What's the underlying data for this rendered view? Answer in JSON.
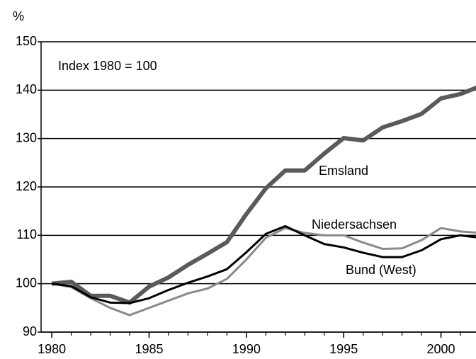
{
  "chart_data": {
    "type": "line",
    "y_label": "%",
    "annotation": "Index 1980 = 100",
    "x": [
      1980,
      1981,
      1982,
      1983,
      1984,
      1985,
      1986,
      1987,
      1988,
      1989,
      1990,
      1991,
      1992,
      1993,
      1994,
      1995,
      1996,
      1997,
      1998,
      1999,
      2000,
      2001,
      2002
    ],
    "series": [
      {
        "name": "Emsland",
        "color": "#5a5a5a",
        "values": [
          100,
          100.4,
          97.5,
          97.5,
          96.1,
          99.4,
          101.3,
          103.9,
          106.2,
          108.6,
          114.4,
          119.7,
          123.4,
          123.4,
          126.9,
          130.1,
          129.6,
          132.3,
          133.6,
          135.1,
          138.3,
          139.2,
          140.8
        ]
      },
      {
        "name": "Niedersachsen",
        "color": "#8a8a8a",
        "values": [
          100,
          99.3,
          97,
          95,
          93.5,
          95,
          96.5,
          98,
          99,
          101,
          105,
          109.5,
          111.5,
          110.5,
          110,
          110,
          108.5,
          107.2,
          107.3,
          109,
          111.5,
          110.8,
          110.5
        ]
      },
      {
        "name": "Bund (West)",
        "color": "#000000",
        "values": [
          100,
          99.5,
          97.2,
          96.1,
          96,
          97,
          98.7,
          100.2,
          101.5,
          103,
          106.5,
          110.3,
          111.9,
          110,
          108.2,
          107.5,
          106.4,
          105.5,
          105.5,
          106.9,
          109.2,
          110,
          109.5
        ]
      }
    ],
    "xlim": [
      1979.45,
      2001.8
    ],
    "xticks": [
      1980,
      1985,
      1990,
      1995,
      2000
    ],
    "ylim": [
      90,
      150
    ],
    "yticks": [
      90,
      100,
      110,
      120,
      130,
      140,
      150
    ],
    "grid": true
  }
}
